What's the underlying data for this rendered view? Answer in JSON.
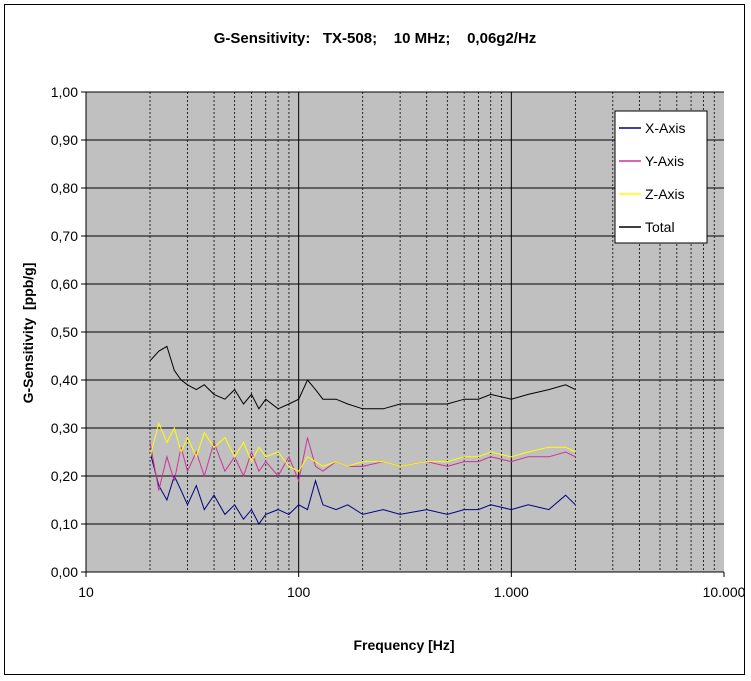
{
  "chart_data": {
    "type": "line",
    "title": "G-Sensitivity:   TX-508;    10 MHz;    0,06g2/Hz",
    "xlabel": "Frequency [Hz]",
    "ylabel": "G-Sensitivity  [ppb/g]",
    "xscale": "log",
    "xlim": [
      10,
      10000
    ],
    "ylim": [
      0,
      1
    ],
    "xticks": [
      10,
      100,
      1000,
      10000
    ],
    "xtick_labels": [
      "10",
      "100",
      "1.000",
      "10.000"
    ],
    "yticks": [
      0,
      0.1,
      0.2,
      0.3,
      0.4,
      0.5,
      0.6,
      0.7,
      0.8,
      0.9,
      1.0
    ],
    "ytick_labels": [
      "0,00",
      "0,10",
      "0,20",
      "0,30",
      "0,40",
      "0,50",
      "0,60",
      "0,70",
      "0,80",
      "0,90",
      "1,00"
    ],
    "grid": true,
    "plot_background": "#c0c0c0",
    "legend_position": "top-right",
    "series": [
      {
        "name": "X-Axis",
        "color": "#000080",
        "x": [
          20,
          22,
          24,
          26,
          28,
          30,
          33,
          36,
          40,
          45,
          50,
          55,
          60,
          65,
          70,
          80,
          90,
          100,
          110,
          120,
          130,
          150,
          170,
          200,
          250,
          300,
          400,
          500,
          600,
          700,
          800,
          1000,
          1200,
          1500,
          1800,
          2000
        ],
        "values": [
          0.25,
          0.18,
          0.15,
          0.2,
          0.17,
          0.14,
          0.18,
          0.13,
          0.16,
          0.12,
          0.14,
          0.11,
          0.13,
          0.1,
          0.12,
          0.13,
          0.12,
          0.14,
          0.13,
          0.19,
          0.14,
          0.13,
          0.14,
          0.12,
          0.13,
          0.12,
          0.13,
          0.12,
          0.13,
          0.13,
          0.14,
          0.13,
          0.14,
          0.13,
          0.16,
          0.14
        ]
      },
      {
        "name": "Y-Axis",
        "color": "#cc3399",
        "x": [
          20,
          22,
          24,
          26,
          28,
          30,
          33,
          36,
          40,
          45,
          50,
          55,
          60,
          65,
          70,
          80,
          90,
          100,
          110,
          120,
          130,
          150,
          170,
          200,
          250,
          300,
          400,
          500,
          600,
          700,
          800,
          1000,
          1200,
          1500,
          1800,
          2000
        ],
        "values": [
          0.27,
          0.17,
          0.24,
          0.19,
          0.26,
          0.21,
          0.25,
          0.2,
          0.27,
          0.21,
          0.24,
          0.2,
          0.25,
          0.21,
          0.23,
          0.2,
          0.24,
          0.19,
          0.28,
          0.22,
          0.21,
          0.23,
          0.22,
          0.22,
          0.23,
          0.22,
          0.23,
          0.22,
          0.23,
          0.23,
          0.24,
          0.23,
          0.24,
          0.24,
          0.25,
          0.24
        ]
      },
      {
        "name": "Z-Axis",
        "color": "#ffff00",
        "x": [
          20,
          22,
          24,
          26,
          28,
          30,
          33,
          36,
          40,
          45,
          50,
          55,
          60,
          65,
          70,
          80,
          90,
          100,
          110,
          120,
          130,
          150,
          170,
          200,
          250,
          300,
          400,
          500,
          600,
          700,
          800,
          1000,
          1200,
          1500,
          1800,
          2000
        ],
        "values": [
          0.24,
          0.31,
          0.27,
          0.3,
          0.25,
          0.28,
          0.24,
          0.29,
          0.26,
          0.28,
          0.24,
          0.27,
          0.23,
          0.26,
          0.24,
          0.25,
          0.22,
          0.21,
          0.24,
          0.23,
          0.22,
          0.23,
          0.22,
          0.23,
          0.23,
          0.22,
          0.23,
          0.23,
          0.24,
          0.24,
          0.25,
          0.24,
          0.25,
          0.26,
          0.26,
          0.25
        ]
      },
      {
        "name": "Total",
        "color": "#000000",
        "x": [
          20,
          22,
          24,
          26,
          28,
          30,
          33,
          36,
          40,
          45,
          50,
          55,
          60,
          65,
          70,
          80,
          90,
          100,
          110,
          120,
          130,
          150,
          170,
          200,
          250,
          300,
          400,
          500,
          600,
          700,
          800,
          1000,
          1200,
          1500,
          1800,
          2000
        ],
        "values": [
          0.44,
          0.46,
          0.47,
          0.42,
          0.4,
          0.39,
          0.38,
          0.39,
          0.37,
          0.36,
          0.38,
          0.35,
          0.37,
          0.34,
          0.36,
          0.34,
          0.35,
          0.36,
          0.4,
          0.38,
          0.36,
          0.36,
          0.35,
          0.34,
          0.34,
          0.35,
          0.35,
          0.35,
          0.36,
          0.36,
          0.37,
          0.36,
          0.37,
          0.38,
          0.39,
          0.38
        ]
      }
    ]
  }
}
